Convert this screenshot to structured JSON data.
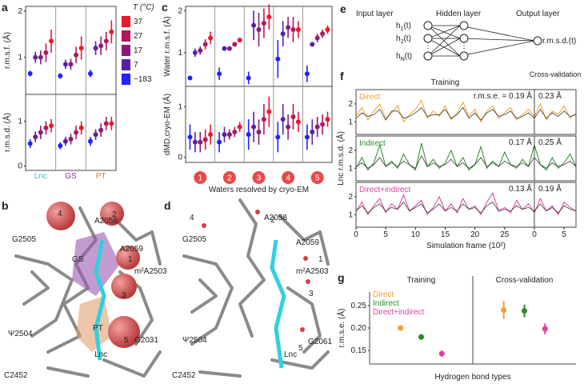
{
  "chart_data": [
    {
      "type": "dot-error",
      "label": "a",
      "categories": [
        "Lnc",
        "GS",
        "PT"
      ],
      "category_colors": [
        "#2bbfd0",
        "#8a2a9a",
        "#e07b2a"
      ],
      "legend_title": "T (°C)",
      "series": [
        {
          "name": "−183",
          "color": "#2222ff"
        },
        {
          "name": "7",
          "color": "#5a1fa8"
        },
        {
          "name": "17",
          "color": "#8a1a7a"
        },
        {
          "name": "27",
          "color": "#b3185a"
        },
        {
          "name": "37",
          "color": "#e8192c"
        }
      ],
      "subplots": [
        {
          "ylabel": "r.m.s.f. (Å)",
          "ylim": [
            0.2,
            2.1
          ],
          "yticks": [
            1,
            2
          ],
          "values": [
            [
              0.65,
              0.6,
              0.65
            ],
            [
              1.0,
              0.85,
              1.2
            ],
            [
              1.0,
              0.85,
              1.25
            ],
            [
              1.1,
              1.05,
              1.35
            ],
            [
              1.35,
              1.2,
              1.55
            ]
          ],
          "errors": [
            [
              0.06,
              0.06,
              0.08
            ],
            [
              0.12,
              0.1,
              0.15
            ],
            [
              0.15,
              0.12,
              0.2
            ],
            [
              0.2,
              0.18,
              0.2
            ],
            [
              0.25,
              0.25,
              0.25
            ]
          ]
        },
        {
          "ylabel": "r.m.s.d. (Å)",
          "ylim": [
            -0.1,
            1.6
          ],
          "yticks": [
            0,
            1
          ],
          "values": [
            [
              0.5,
              0.45,
              0.55
            ],
            [
              0.65,
              0.55,
              0.7
            ],
            [
              0.75,
              0.6,
              0.8
            ],
            [
              0.85,
              0.75,
              0.95
            ],
            [
              0.9,
              0.85,
              0.95
            ]
          ],
          "errors": [
            [
              0.1,
              0.08,
              0.1
            ],
            [
              0.12,
              0.1,
              0.12
            ],
            [
              0.15,
              0.12,
              0.15
            ],
            [
              0.15,
              0.15,
              0.15
            ],
            [
              0.15,
              0.15,
              0.15
            ]
          ]
        }
      ]
    },
    {
      "type": "dot-error",
      "label": "c",
      "categories": [
        "1",
        "2",
        "3",
        "4",
        "5"
      ],
      "xlabel": "Waters resolved by cryo-EM",
      "series": [
        {
          "color": "#2222ff"
        },
        {
          "color": "#5a1fa8"
        },
        {
          "color": "#8a1a7a"
        },
        {
          "color": "#b3185a"
        },
        {
          "color": "#e8192c"
        }
      ],
      "subplots": [
        {
          "ylabel": "Water r.m.s.f. (Å)",
          "ylim": [
            0.2,
            2.1
          ],
          "yticks": [
            1,
            2
          ],
          "values": [
            [
              0.4,
              0.5,
              0.4,
              0.85,
              0.5
            ],
            [
              1.0,
              1.1,
              1.65,
              1.45,
              1.2
            ],
            [
              1.05,
              1.1,
              1.55,
              1.6,
              1.35
            ],
            [
              1.2,
              1.2,
              1.7,
              1.55,
              1.45
            ],
            [
              1.35,
              1.3,
              1.85,
              1.55,
              1.55
            ]
          ],
          "errors": [
            [
              0.05,
              0.15,
              0.15,
              0.45,
              0.2
            ],
            [
              0.1,
              0.05,
              0.35,
              0.3,
              0.05
            ],
            [
              0.1,
              0.05,
              0.4,
              0.25,
              0.1
            ],
            [
              0.12,
              0.05,
              0.35,
              0.3,
              0.1
            ],
            [
              0.15,
              0.05,
              0.3,
              0.2,
              0.1
            ]
          ]
        },
        {
          "ylabel": "dMD,cryo-EM (Å)",
          "ylim": [
            -0.1,
            1.4
          ],
          "yticks": [
            0,
            1
          ],
          "values": [
            [
              0.4,
              0.3,
              0.45,
              0.4,
              0.4
            ],
            [
              0.3,
              0.45,
              0.6,
              0.75,
              0.5
            ],
            [
              0.3,
              0.45,
              0.5,
              0.6,
              0.6
            ],
            [
              0.35,
              0.5,
              0.75,
              0.8,
              0.65
            ],
            [
              0.45,
              0.6,
              0.9,
              0.7,
              0.75
            ]
          ],
          "errors": [
            [
              0.25,
              0.2,
              0.3,
              0.3,
              0.25
            ],
            [
              0.2,
              0.15,
              0.3,
              0.3,
              0.25
            ],
            [
              0.2,
              0.1,
              0.25,
              0.25,
              0.2
            ],
            [
              0.2,
              0.1,
              0.3,
              0.25,
              0.2
            ],
            [
              0.2,
              0.1,
              0.3,
              0.2,
              0.15
            ]
          ]
        }
      ]
    },
    {
      "type": "line",
      "label": "f",
      "ylabel": "Lnc r.m.s.d. (Å)",
      "xlabel": "Simulation frame (10²)",
      "headers": [
        "Training",
        "Cross-validation"
      ],
      "cv_start": 30,
      "xlim": [
        0,
        37
      ],
      "xticks": [
        0,
        5,
        10,
        15,
        20,
        25,
        {
          "value": 30,
          "label": "0"
        },
        {
          "value": 35,
          "label": "5"
        }
      ],
      "ylim": [
        0.3,
        2.8
      ],
      "yticks": [
        1,
        2
      ],
      "x": [
        0,
        1,
        2,
        3,
        4,
        5,
        6,
        7,
        8,
        9,
        10,
        11,
        12,
        13,
        14,
        15,
        16,
        17,
        18,
        19,
        20,
        21,
        22,
        23,
        24,
        25,
        26,
        27,
        28,
        29,
        30,
        31,
        32,
        33,
        34,
        35,
        36,
        37
      ],
      "subplots": [
        {
          "annotations": [
            "r.m.s.e. = 0.19 Å",
            "0.23 Å"
          ],
          "series": [
            {
              "name": "Direct",
              "color": "#f0a030",
              "values": [
                1.3,
                1.8,
                1.1,
                1.6,
                2.0,
                1.2,
                1.5,
                1.9,
                1.0,
                1.4,
                1.7,
                2.2,
                1.2,
                1.6,
                1.3,
                1.9,
                1.1,
                1.5,
                2.1,
                1.3,
                1.7,
                1.0,
                1.6,
                1.9,
                1.2,
                1.5,
                1.8,
                1.1,
                1.4,
                1.7,
                1.3,
                2.0,
                1.1,
                1.6,
                1.4,
                1.9,
                1.2,
                1.5
              ]
            },
            {
              "color": "#222222",
              "values": [
                1.2,
                1.5,
                1.3,
                1.4,
                1.7,
                1.1,
                1.6,
                1.6,
                1.2,
                1.3,
                1.5,
                1.8,
                1.3,
                1.4,
                1.4,
                1.7,
                1.2,
                1.4,
                1.8,
                1.2,
                1.5,
                1.1,
                1.5,
                1.7,
                1.3,
                1.4,
                1.6,
                1.2,
                1.3,
                1.5,
                1.2,
                1.7,
                1.2,
                1.5,
                1.3,
                1.6,
                1.3,
                1.4
              ]
            }
          ]
        },
        {
          "annotations": [
            "0.17 Å",
            "0.25 Å"
          ],
          "series": [
            {
              "name": "Indirect",
              "color": "#2a8a2a",
              "values": [
                1.0,
                1.6,
                0.9,
                1.3,
                2.3,
                1.1,
                1.4,
                1.0,
                1.8,
                1.2,
                0.9,
                2.4,
                1.1,
                1.5,
                1.0,
                1.3,
                2.0,
                1.1,
                1.6,
                0.9,
                1.2,
                2.2,
                1.0,
                1.4,
                1.1,
                1.9,
                1.2,
                1.0,
                1.5,
                1.1,
                2.3,
                1.2,
                0.9,
                1.6,
                1.0,
                1.3,
                1.8,
                1.1
              ]
            },
            {
              "color": "#222222",
              "values": [
                1.1,
                1.3,
                1.0,
                1.2,
                1.6,
                1.1,
                1.3,
                1.1,
                1.4,
                1.2,
                1.0,
                1.7,
                1.1,
                1.3,
                1.1,
                1.2,
                1.5,
                1.1,
                1.3,
                1.0,
                1.2,
                1.6,
                1.1,
                1.3,
                1.1,
                1.4,
                1.2,
                1.1,
                1.3,
                1.1,
                1.6,
                1.2,
                1.0,
                1.3,
                1.1,
                1.2,
                1.4,
                1.1
              ]
            }
          ]
        },
        {
          "annotations": [
            "0.13 Å",
            "0.19 Å"
          ],
          "series": [
            {
              "name": "Direct+indirect",
              "color": "#e040a0",
              "values": [
                1.2,
                1.7,
                1.0,
                1.5,
                1.9,
                1.1,
                1.6,
                1.3,
                2.1,
                1.2,
                1.5,
                1.8,
                1.0,
                1.4,
                2.0,
                1.2,
                1.6,
                1.1,
                1.9,
                1.3,
                1.5,
                1.0,
                1.7,
                2.2,
                1.2,
                1.4,
                1.1,
                1.8,
                1.3,
                1.6,
                1.1,
                1.9,
                1.2,
                1.5,
                1.0,
                1.7,
                1.4,
                1.2
              ]
            },
            {
              "color": "#222222",
              "values": [
                1.2,
                1.5,
                1.1,
                1.4,
                1.6,
                1.2,
                1.4,
                1.3,
                1.7,
                1.2,
                1.4,
                1.6,
                1.1,
                1.3,
                1.6,
                1.2,
                1.4,
                1.2,
                1.6,
                1.3,
                1.4,
                1.1,
                1.5,
                1.7,
                1.2,
                1.3,
                1.2,
                1.5,
                1.3,
                1.4,
                1.2,
                1.6,
                1.2,
                1.4,
                1.1,
                1.5,
                1.3,
                1.2
              ]
            }
          ]
        }
      ]
    },
    {
      "type": "scatter-error",
      "label": "g",
      "categories": [
        "Training",
        "Cross-validation"
      ],
      "xlabel": "Hydrogen bond types",
      "ylabel": "r.m.s.e. (Å)",
      "ylim": [
        0.12,
        0.28
      ],
      "yticks": [
        {
          "value": 0.15,
          "label": "0.15"
        },
        {
          "value": 0.2,
          "label": "0.20"
        },
        {
          "value": 0.25,
          "label": "0.25"
        }
      ],
      "series": [
        {
          "name": "Direct",
          "color": "#f0a030",
          "values": [
            0.2,
            0.24
          ],
          "errors": [
            0.006,
            0.02
          ]
        },
        {
          "name": "Indirect",
          "color": "#2a8a2a",
          "values": [
            0.18,
            0.238
          ],
          "errors": [
            0.006,
            0.014
          ]
        },
        {
          "name": "Direct+indirect",
          "color": "#e040a0",
          "values": [
            0.143,
            0.198
          ],
          "errors": [
            0.007,
            0.012
          ]
        }
      ]
    }
  ],
  "diagram": {
    "label": "e",
    "layers": [
      "Input layer",
      "Hidden layer",
      "Output layer"
    ],
    "inputs": [
      {
        "base": "h",
        "sub": "1",
        "rest": "(t)"
      },
      {
        "base": "h",
        "sub": "2",
        "rest": "(t)"
      },
      {
        "base": "h",
        "sub": "N",
        "rest": "(t)"
      }
    ],
    "output": "r.m.s.d.(t)"
  },
  "structure_b": {
    "label": "b",
    "residues": [
      "A2058",
      "G2505",
      "A2059",
      "m²A2503",
      "G2031",
      "Ψ2504",
      "C2452"
    ],
    "regions": [
      "GS",
      "PT",
      "Lnc"
    ],
    "waters": [
      "4",
      "2",
      "1",
      "3",
      "5"
    ]
  },
  "structure_d": {
    "label": "d",
    "residues": [
      "A2058",
      "G2505",
      "A2059",
      "m²A2503",
      "G2061",
      "Ψ2504",
      "C2452"
    ],
    "ligand": "Lnc",
    "waters": [
      "4",
      "2",
      "1",
      "3",
      "5"
    ]
  }
}
